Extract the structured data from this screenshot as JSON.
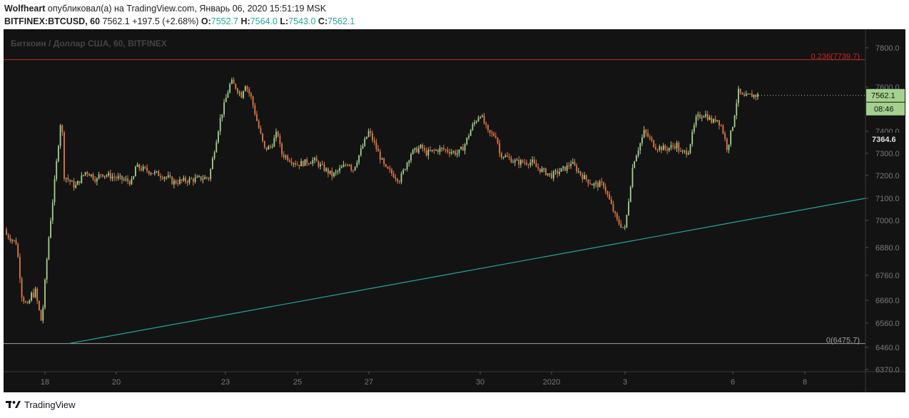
{
  "header": {
    "author": "Wolfheart",
    "published_text": "опубликовал(а) на TradingView.com, Январь 06, 2020 15:51:19 MSK",
    "symbol": "BITFINEX:BTCUSD, 60",
    "last_price": "7562.1",
    "change": "+197.5 (+2.68%)",
    "o_label": "O:",
    "o_value": "7552.7",
    "h_label": "H:",
    "h_value": "7564.0",
    "l_label": "L:",
    "l_value": "7543.0",
    "c_label": "C:",
    "c_value": "7562.1"
  },
  "chart": {
    "watermark": "Биткоин / Доллар США, 60, BITFINEX",
    "colors": {
      "background": "#131313",
      "up": "#a5d18e",
      "down": "#e07a4a",
      "fib_top": "#c62828",
      "fib_bottom": "#9e9e9e",
      "trendline": "#26a69a",
      "price_label_bg": "#a5d18e",
      "axis_text": "#7a7a7a"
    }
  },
  "chart_data": {
    "type": "candlestick",
    "symbol": "BITFINEX:BTCUSD",
    "timeframe": "60",
    "y_ticks": [
      7800.0,
      7600.0,
      7400.0,
      7300.0,
      7200.0,
      7100.0,
      7000.0,
      6880.0,
      6760.0,
      6660.0,
      6560.0,
      6460.0,
      6370.0
    ],
    "y_tick_labels": [
      "7800.0",
      "7600.0",
      "7400.0",
      "7300.0",
      "7200.0",
      "7100.0",
      "7000.0",
      "6880.0",
      "6760.0",
      "6660.0",
      "6560.0",
      "6460.0",
      "6370.0"
    ],
    "x_tick_labels": [
      "18",
      "20",
      "23",
      "25",
      "27",
      "30",
      "2020",
      "3",
      "6",
      "8"
    ],
    "current_price": 7562.1,
    "current_price_label": "7562.1",
    "countdown_label": "08:46",
    "previous_close": 7364.6,
    "previous_close_label": "7364.6",
    "fib_levels": [
      {
        "ratio": "0.236",
        "price": 7739.7,
        "label": "0.236(7739.7)"
      },
      {
        "ratio": "0",
        "price": 6475.7,
        "label": "0(6475.7)"
      }
    ],
    "trendline": {
      "from": {
        "x": "18",
        "price": 6475.7
      },
      "to": {
        "x": "8",
        "price": 7100
      }
    },
    "path_anchors": [
      {
        "x": "17",
        "price": 6960
      },
      {
        "x": "17",
        "price": 6940
      },
      {
        "x": "17",
        "price": 6920
      },
      {
        "x": "17",
        "price": 6900
      },
      {
        "x": "17",
        "price": 6680
      },
      {
        "x": "17",
        "price": 6630
      },
      {
        "x": "17",
        "price": 6700
      },
      {
        "x": "18",
        "price": 6640
      },
      {
        "x": "18",
        "price": 6700
      },
      {
        "x": "18",
        "price": 6560
      },
      {
        "x": "18",
        "price": 6900
      },
      {
        "x": "18",
        "price": 7180
      },
      {
        "x": "18",
        "price": 7480
      },
      {
        "x": "19",
        "price": 7200
      },
      {
        "x": "19",
        "price": 7150
      },
      {
        "x": "19",
        "price": 7220
      },
      {
        "x": "19",
        "price": 7180
      },
      {
        "x": "20",
        "price": 7210
      },
      {
        "x": "20",
        "price": 7170
      },
      {
        "x": "21",
        "price": 7240
      },
      {
        "x": "21",
        "price": 7190
      },
      {
        "x": "22",
        "price": 7170
      },
      {
        "x": "22",
        "price": 7190
      },
      {
        "x": "23",
        "price": 7190
      },
      {
        "x": "23",
        "price": 7450
      },
      {
        "x": "23",
        "price": 7630
      },
      {
        "x": "23",
        "price": 7560
      },
      {
        "x": "24",
        "price": 7620
      },
      {
        "x": "24",
        "price": 7550
      },
      {
        "x": "24",
        "price": 7430
      },
      {
        "x": "24",
        "price": 7320
      },
      {
        "x": "24",
        "price": 7330
      },
      {
        "x": "24",
        "price": 7400
      },
      {
        "x": "25",
        "price": 7300
      },
      {
        "x": "25",
        "price": 7250
      },
      {
        "x": "25",
        "price": 7270
      },
      {
        "x": "26",
        "price": 7260
      },
      {
        "x": "26",
        "price": 7200
      },
      {
        "x": "26",
        "price": 7260
      },
      {
        "x": "27",
        "price": 7220
      },
      {
        "x": "27",
        "price": 7400
      },
      {
        "x": "27",
        "price": 7230
      },
      {
        "x": "28",
        "price": 7220
      },
      {
        "x": "28",
        "price": 7180
      },
      {
        "x": "28",
        "price": 7300
      },
      {
        "x": "28",
        "price": 7330
      },
      {
        "x": "29",
        "price": 7300
      },
      {
        "x": "29",
        "price": 7320
      },
      {
        "x": "29",
        "price": 7300
      },
      {
        "x": "30",
        "price": 7330
      },
      {
        "x": "30",
        "price": 7420
      },
      {
        "x": "30",
        "price": 7480
      },
      {
        "x": "30",
        "price": 7390
      },
      {
        "x": "30",
        "price": 7380
      },
      {
        "x": "31",
        "price": 7300
      },
      {
        "x": "31",
        "price": 7260
      },
      {
        "x": "31",
        "price": 7260
      },
      {
        "x": "2020",
        "price": 7240
      },
      {
        "x": "2020",
        "price": 7200
      },
      {
        "x": "2020",
        "price": 7240
      },
      {
        "x": "2",
        "price": 7260
      },
      {
        "x": "2",
        "price": 7200
      },
      {
        "x": "2",
        "price": 7160
      },
      {
        "x": "2",
        "price": 7160
      },
      {
        "x": "3",
        "price": 7100
      },
      {
        "x": "3",
        "price": 7000
      },
      {
        "x": "3",
        "price": 6960
      },
      {
        "x": "3",
        "price": 7260
      },
      {
        "x": "3",
        "price": 7360
      },
      {
        "x": "4",
        "price": 7400
      },
      {
        "x": "4",
        "price": 7330
      },
      {
        "x": "4",
        "price": 7320
      },
      {
        "x": "4",
        "price": 7340
      },
      {
        "x": "5",
        "price": 7300
      },
      {
        "x": "5",
        "price": 7310
      },
      {
        "x": "5",
        "price": 7460
      },
      {
        "x": "5",
        "price": 7480
      },
      {
        "x": "5",
        "price": 7440
      },
      {
        "x": "6",
        "price": 7460
      },
      {
        "x": "6",
        "price": 7420
      },
      {
        "x": "6",
        "price": 7320
      },
      {
        "x": "6",
        "price": 7430
      },
      {
        "x": "6",
        "price": 7580
      },
      {
        "x": "6",
        "price": 7550
      },
      {
        "x": "6",
        "price": 7562.1
      }
    ]
  },
  "footer": {
    "brand": "TradingView",
    "logo_icon": "tradingview-logo-icon"
  }
}
